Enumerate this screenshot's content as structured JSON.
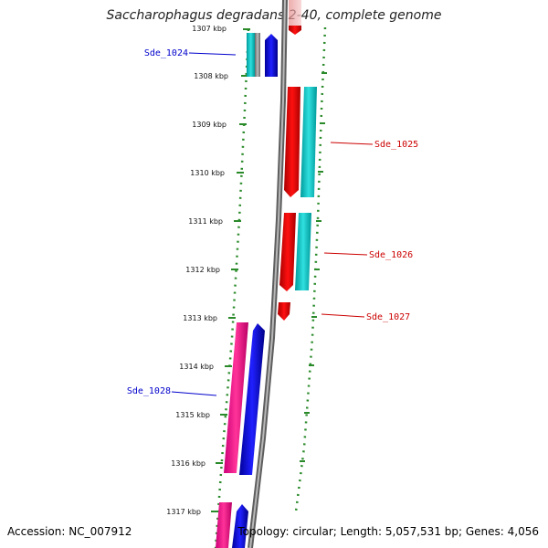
{
  "title": "Saccharophagus degradans 2-40, complete genome",
  "accession": "Accession: NC_007912",
  "summary": "Topology: circular; Length: 5,057,531 bp; Genes: 4,056",
  "ticks": [
    "1307 kbp",
    "1308 kbp",
    "1309 kbp",
    "1310 kbp",
    "1311 kbp",
    "1312 kbp",
    "1313 kbp",
    "1314 kbp",
    "1315 kbp",
    "1316 kbp",
    "1317 kbp"
  ],
  "gene_labels": [
    {
      "id": "Sde_1024",
      "color": "#0000cc"
    },
    {
      "id": "Sde_1025",
      "color": "#cc0000"
    },
    {
      "id": "Sde_1026",
      "color": "#cc0000"
    },
    {
      "id": "Sde_1027",
      "color": "#cc0000"
    },
    {
      "id": "Sde_1028",
      "color": "#0000cc"
    }
  ],
  "colors": {
    "forward_cds": "#0000ee",
    "reverse_cds": "#ee0000",
    "rna": "#20cccc",
    "trna": "#ee2299",
    "backbone": "#8a8a8a",
    "dotted_track": "#2a8a2a"
  }
}
